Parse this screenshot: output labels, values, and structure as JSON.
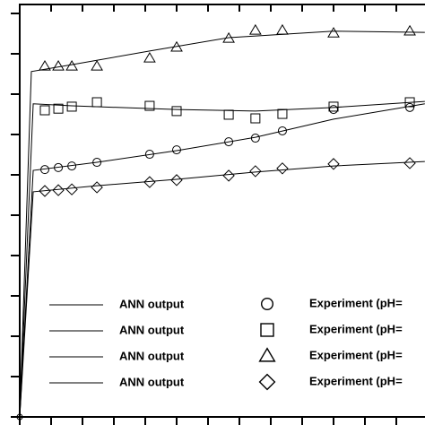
{
  "chart_data": {
    "type": "line",
    "xlim": [
      0,
      12.9
    ],
    "ylim": [
      0,
      10.3
    ],
    "xticks": [
      0,
      1,
      2,
      3,
      4,
      5,
      6,
      7,
      8,
      9,
      10,
      11,
      12
    ],
    "yticks": [
      0,
      1,
      2,
      3,
      4,
      5,
      6,
      7,
      8,
      9,
      10
    ],
    "tick_labels": false,
    "series": [
      {
        "name": "ANN output",
        "color": "#000000",
        "style": "line",
        "x": [
          0,
          0.37,
          1.66,
          4.14,
          6.66,
          10,
          12.91
        ],
        "values": [
          0,
          8.56,
          8.73,
          9.07,
          9.4,
          9.56,
          9.53
        ]
      },
      {
        "name": "ANN output",
        "color": "#000000",
        "style": "line",
        "x": [
          0,
          0.43,
          1.66,
          5,
          7.51,
          10,
          12.91
        ],
        "values": [
          0,
          7.76,
          7.71,
          7.62,
          7.58,
          7.67,
          7.82
        ]
      },
      {
        "name": "ANN output",
        "color": "#000000",
        "style": "line",
        "x": [
          0,
          0.43,
          2.46,
          5,
          7.51,
          10,
          12.91
        ],
        "values": [
          0,
          6.11,
          6.31,
          6.6,
          6.93,
          7.38,
          7.76
        ]
      },
      {
        "name": "ANN output",
        "color": "#000000",
        "style": "line",
        "x": [
          0,
          0.43,
          2.46,
          5,
          7.51,
          10,
          12.91
        ],
        "values": [
          0,
          5.58,
          5.73,
          5.89,
          6.07,
          6.22,
          6.33
        ]
      },
      {
        "name": "Experiment (pH=",
        "color": "#000000",
        "style": "marker",
        "marker": "circle",
        "x": [
          0.8,
          1.23,
          1.66,
          2.46,
          4.14,
          5,
          6.66,
          7.51,
          8.37,
          10,
          12.43
        ],
        "values": [
          6.13,
          6.18,
          6.22,
          6.31,
          6.51,
          6.62,
          6.82,
          6.91,
          7.09,
          7.62,
          7.67
        ]
      },
      {
        "name": "Experiment (pH=",
        "color": "#000000",
        "style": "marker",
        "marker": "square",
        "x": [
          0.8,
          1.23,
          1.66,
          2.46,
          4.14,
          5,
          6.66,
          7.51,
          8.37,
          10,
          12.43
        ],
        "values": [
          7.6,
          7.64,
          7.69,
          7.8,
          7.71,
          7.58,
          7.49,
          7.4,
          7.51,
          7.69,
          7.8
        ]
      },
      {
        "name": "Experiment (pH=",
        "color": "#000000",
        "style": "marker",
        "marker": "triangle",
        "x": [
          0.8,
          1.23,
          1.66,
          2.46,
          4.14,
          5,
          6.66,
          7.51,
          8.37,
          10,
          12.43
        ],
        "values": [
          8.69,
          8.69,
          8.69,
          8.69,
          8.89,
          9.16,
          9.38,
          9.58,
          9.58,
          9.51,
          9.56
        ]
      },
      {
        "name": "Experiment (pH=",
        "color": "#000000",
        "style": "marker",
        "marker": "diamond",
        "x": [
          0.8,
          1.23,
          1.66,
          2.46,
          4.14,
          5,
          6.66,
          7.51,
          8.37,
          10,
          12.43
        ],
        "values": [
          5.6,
          5.62,
          5.64,
          5.69,
          5.82,
          5.87,
          5.98,
          6.09,
          6.16,
          6.27,
          6.29
        ]
      }
    ]
  }
}
